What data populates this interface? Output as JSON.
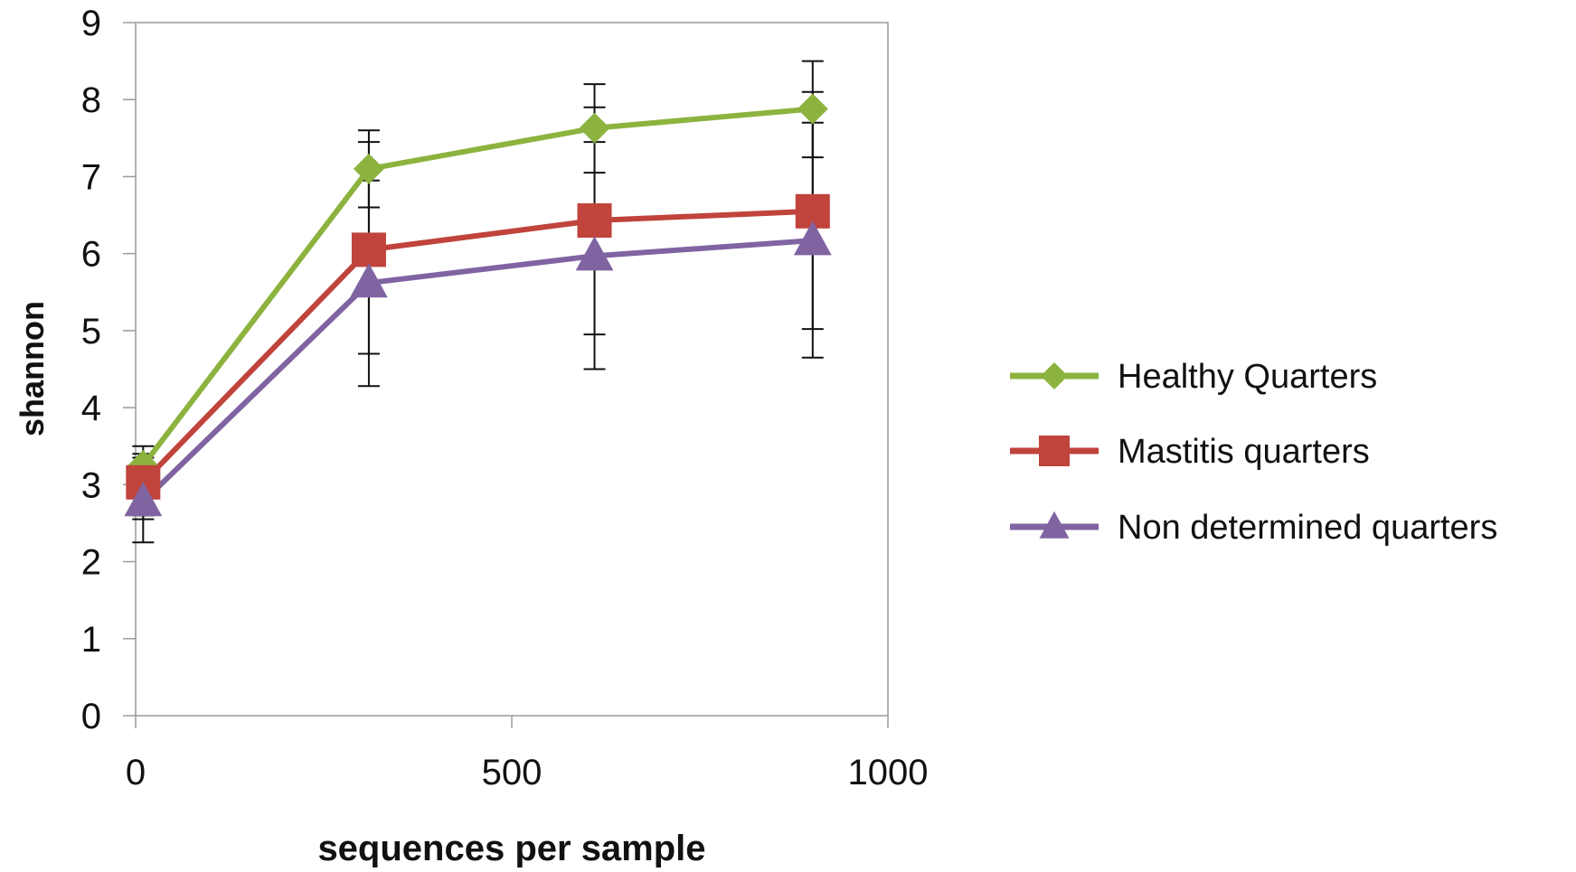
{
  "chart_data": {
    "type": "line",
    "title": "",
    "xlabel": "sequences per sample",
    "ylabel": "shannon",
    "xlim": [
      0,
      1000
    ],
    "ylim": [
      0,
      9
    ],
    "x_ticks": [
      0,
      500,
      1000
    ],
    "y_ticks": [
      0,
      1,
      2,
      3,
      4,
      5,
      6,
      7,
      8,
      9
    ],
    "grid": false,
    "legend_position": "right",
    "series": [
      {
        "name": "Healthy Quarters",
        "color": "#8DB33F",
        "marker": "diamond",
        "x": [
          10,
          310,
          610,
          900
        ],
        "y": [
          3.25,
          7.1,
          7.63,
          7.88
        ],
        "err_low": [
          2.55,
          6.6,
          7.05,
          7.25
        ],
        "err_high": [
          3.5,
          7.6,
          8.2,
          8.5
        ]
      },
      {
        "name": "Mastitis quarters",
        "color": "#C0433C",
        "marker": "square",
        "x": [
          10,
          310,
          610,
          900
        ],
        "y": [
          3.03,
          6.05,
          6.43,
          6.55
        ],
        "err_low": [
          2.6,
          4.7,
          4.95,
          5.02
        ],
        "err_high": [
          3.4,
          7.45,
          7.9,
          8.1
        ]
      },
      {
        "name": "Non determined quarters",
        "color": "#8064A2",
        "marker": "triangle",
        "x": [
          10,
          310,
          610,
          900
        ],
        "y": [
          2.78,
          5.62,
          5.97,
          6.17
        ],
        "err_low": [
          2.25,
          4.28,
          4.5,
          4.65
        ],
        "err_high": [
          3.35,
          6.95,
          7.45,
          7.7
        ]
      }
    ]
  }
}
